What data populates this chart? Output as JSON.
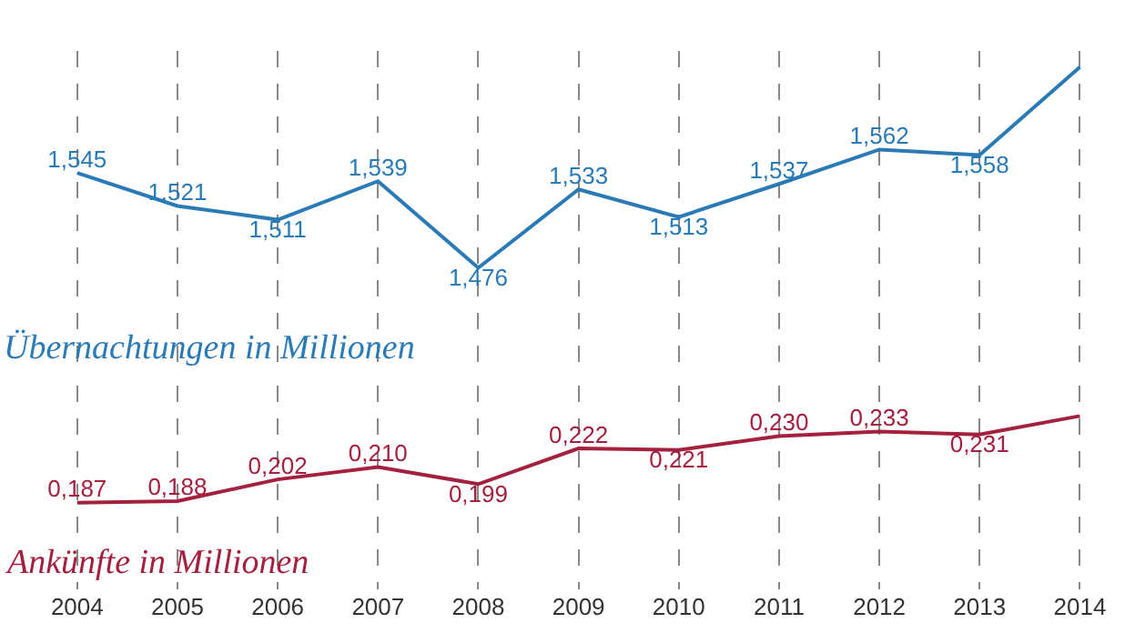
{
  "chart_data": [
    {
      "type": "line",
      "categories": [
        "2004",
        "2005",
        "2006",
        "2007",
        "2008",
        "2009",
        "2010",
        "2011",
        "2012",
        "2013",
        "2014"
      ],
      "series": [
        {
          "name": "Übernachtungen in Millionen",
          "color": "#2a7ab5",
          "values": [
            1.545,
            1.521,
            1.511,
            1.539,
            1.476,
            1.533,
            1.513,
            1.537,
            1.562,
            1.558,
            1.622
          ],
          "value_labels": [
            "1,545",
            "1,521",
            "1,511",
            "1,539",
            "1,476",
            "1,533",
            "1,513",
            "1,537",
            "1,562",
            "1,558",
            null
          ]
        }
      ],
      "grid": "x",
      "legend": false,
      "tick_labels": false,
      "marker": "none",
      "line_style": "solid"
    },
    {
      "type": "line",
      "categories": [
        "2004",
        "2005",
        "2006",
        "2007",
        "2008",
        "2009",
        "2010",
        "2011",
        "2012",
        "2013",
        "2014"
      ],
      "series": [
        {
          "name": "Ankünfte in Millionen",
          "color": "#a3203f",
          "values": [
            0.187,
            0.188,
            0.202,
            0.21,
            0.199,
            0.222,
            0.221,
            0.23,
            0.233,
            0.231,
            0.243
          ],
          "value_labels": [
            "0,187",
            "0,188",
            "0,202",
            "0,210",
            "0,199",
            "0,222",
            "0,221",
            "0,230",
            "0,233",
            "0,231",
            null
          ]
        }
      ],
      "grid": "x",
      "legend": false,
      "tick_labels": "x",
      "marker": "none",
      "line_style": "solid"
    }
  ]
}
